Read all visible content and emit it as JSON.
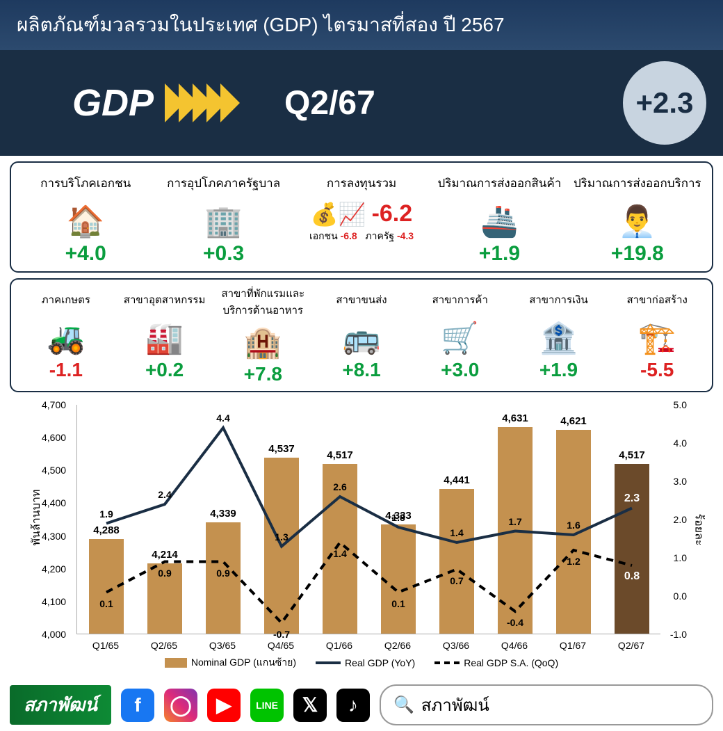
{
  "header": {
    "title": "ผลิตภัณฑ์มวลรวมในประเทศ (GDP) ไตรมาสที่สอง ปี 2567"
  },
  "banner": {
    "label": "GDP",
    "quarter": "Q2/67",
    "value": "+2.3",
    "chevron_color": "#f4c430",
    "chevron_count": 5
  },
  "panel1": [
    {
      "title": "การบริโภคเอกชน",
      "icon": "🏠",
      "value": "+4.0",
      "sign": "pos"
    },
    {
      "title": "การอุปโภคภาครัฐบาล",
      "icon": "🏢",
      "value": "+0.3",
      "sign": "pos"
    },
    {
      "title": "การลงทุนรวม",
      "icon": "💰📈",
      "value": "-6.2",
      "sign": "neg",
      "sub": [
        {
          "label": "เอกชน",
          "val": "-6.8"
        },
        {
          "label": "ภาครัฐ",
          "val": "-4.3"
        }
      ]
    },
    {
      "title": "ปริมาณการส่งออกสินค้า",
      "icon": "🚢",
      "value": "+1.9",
      "sign": "pos"
    },
    {
      "title": "ปริมาณการส่งออกบริการ",
      "icon": "👨‍💼",
      "value": "+19.8",
      "sign": "pos"
    }
  ],
  "panel2": [
    {
      "title": "ภาคเกษตร",
      "icon": "🚜",
      "value": "-1.1",
      "sign": "neg"
    },
    {
      "title": "สาขาอุตสาหกรรม",
      "icon": "🏭",
      "value": "+0.2",
      "sign": "pos"
    },
    {
      "title": "สาขาที่พักแรมและบริการด้านอาหาร",
      "icon": "🏨",
      "value": "+7.8",
      "sign": "pos"
    },
    {
      "title": "สาขาขนส่ง",
      "icon": "🚌",
      "value": "+8.1",
      "sign": "pos"
    },
    {
      "title": "สาขาการค้า",
      "icon": "🛒",
      "value": "+3.0",
      "sign": "pos"
    },
    {
      "title": "สาขาการเงิน",
      "icon": "🏦",
      "value": "+1.9",
      "sign": "pos"
    },
    {
      "title": "สาขาก่อสร้าง",
      "icon": "🏗️",
      "value": "-5.5",
      "sign": "neg"
    }
  ],
  "chart": {
    "type": "bar+line",
    "categories": [
      "Q1/65",
      "Q2/65",
      "Q3/65",
      "Q4/65",
      "Q1/66",
      "Q2/66",
      "Q3/66",
      "Q4/66",
      "Q1/67",
      "Q2/67"
    ],
    "bars": [
      4288,
      4214,
      4339,
      4537,
      4517,
      4333,
      4441,
      4631,
      4621,
      4517
    ],
    "bar_labels": [
      "4,288",
      "4,214",
      "4,339",
      "4,537",
      "4,517",
      "4,333",
      "4,441",
      "4,631",
      "4,621",
      "4,517"
    ],
    "bar_color": "#c4914f",
    "bar_color_last": "#6b4a2a",
    "line_yoy": [
      1.9,
      2.4,
      4.4,
      1.3,
      2.6,
      1.8,
      1.4,
      1.7,
      1.6,
      2.3
    ],
    "line_yoy_color": "#1a2e44",
    "line_qoq": [
      0.1,
      0.9,
      0.9,
      -0.7,
      1.4,
      0.1,
      0.7,
      -0.4,
      1.2,
      0.8
    ],
    "line_qoq_color": "#000000",
    "y_left": {
      "min": 4000,
      "max": 4700,
      "step": 100,
      "label": "พันล้านบาท"
    },
    "y_right": {
      "min": -1.0,
      "max": 5.0,
      "step": 1.0,
      "label": "ร้อยละ"
    },
    "legend": [
      "Nominal GDP (แกนซ้าย)",
      "Real GDP (YoY)",
      "Real GDP  S.A. (QoQ)"
    ],
    "last_line_labels": {
      "yoy": "2.3",
      "qoq": "0.8",
      "yoy_color": "#ffffff",
      "qoq_color": "#ffffff"
    }
  },
  "footer": {
    "logo": "สภาพัฒน์",
    "socials": [
      "facebook",
      "instagram",
      "youtube",
      "line",
      "x",
      "tiktok"
    ],
    "search_placeholder": "สภาพัฒน์"
  },
  "colors": {
    "header_bg": "#1e3a5f",
    "banner_bg": "#1a2e44",
    "pos": "#0a9d3e",
    "neg": "#dd2222",
    "circle_bg": "#c8d4e0"
  }
}
